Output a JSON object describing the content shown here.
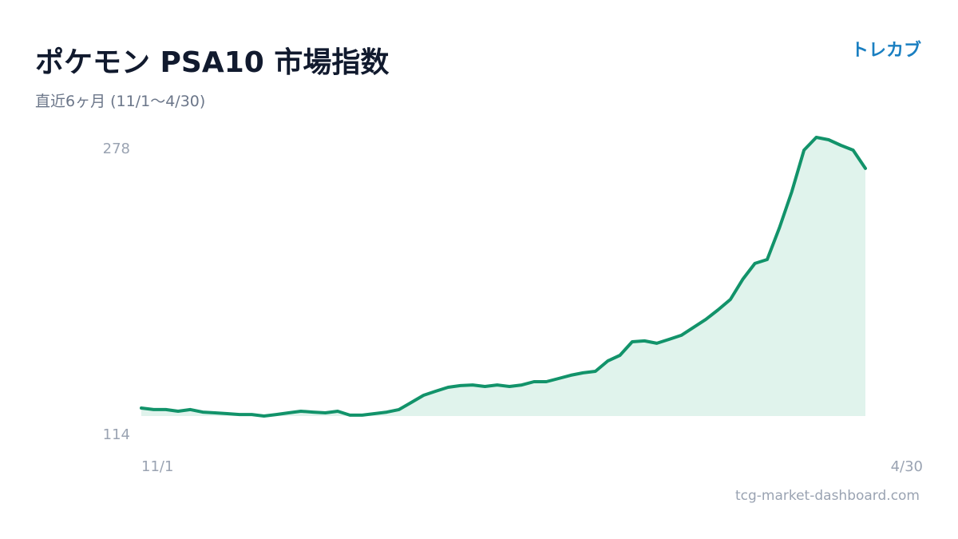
{
  "chart_data": {
    "type": "area",
    "title": "ポケモン PSA10 市場指数",
    "subtitle": "直近6ヶ月 (11/1〜4/30)",
    "brand": "トレカブ",
    "source": "tcg-market-dashboard.com",
    "categories": [
      "11/1",
      null,
      null,
      null,
      null,
      null,
      null,
      null,
      null,
      null,
      null,
      null,
      null,
      null,
      null,
      null,
      null,
      null,
      null,
      null,
      null,
      null,
      null,
      null,
      null,
      null,
      null,
      null,
      null,
      null,
      null,
      null,
      null,
      null,
      null,
      null,
      null,
      null,
      null,
      null,
      null,
      null,
      null,
      null,
      null,
      null,
      null,
      null,
      null,
      null,
      null,
      null,
      null,
      null,
      null,
      null,
      null,
      null,
      null,
      "4/30"
    ],
    "values": [
      118.7,
      117.8,
      117.8,
      116.8,
      117.8,
      116.3,
      115.9,
      115.4,
      114.9,
      114.9,
      114,
      114.9,
      115.9,
      116.8,
      116.3,
      115.9,
      116.8,
      114.5,
      114.5,
      115.4,
      116.3,
      117.8,
      122.0,
      126.2,
      128.6,
      130.9,
      131.9,
      132.3,
      131.4,
      132.3,
      131.4,
      132.3,
      134.2,
      134.2,
      136.1,
      138.0,
      139.4,
      140.3,
      146.4,
      149.7,
      157.7,
      158.2,
      156.8,
      159.1,
      161.5,
      166.2,
      170.9,
      176.5,
      182.6,
      194.4,
      203.8,
      206.1,
      224.9,
      246.0,
      270.5,
      278,
      276.6,
      273.3,
      270.5,
      259.7
    ],
    "color": "#12936a",
    "fill": "#e0f3ec",
    "ylim": [
      114,
      278
    ],
    "yticks": [
      114,
      278
    ],
    "grid": false
  }
}
